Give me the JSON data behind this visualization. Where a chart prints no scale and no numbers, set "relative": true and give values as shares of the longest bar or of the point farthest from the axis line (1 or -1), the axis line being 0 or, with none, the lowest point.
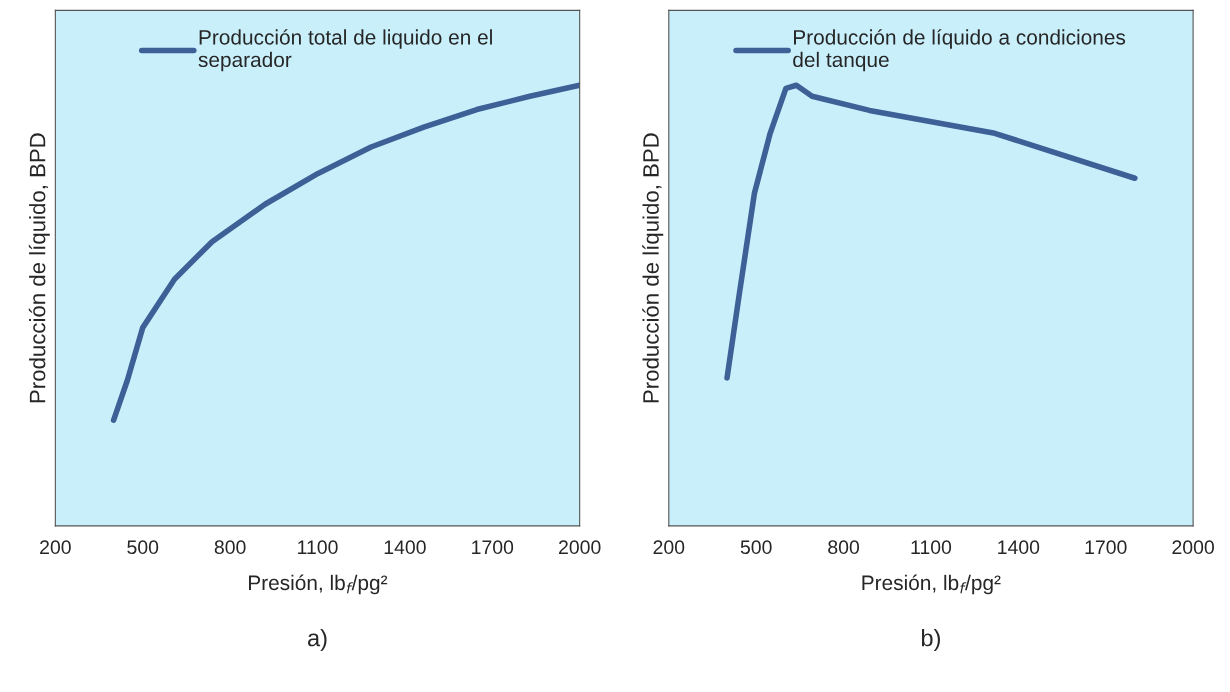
{
  "chart_data": [
    {
      "type": "line",
      "relative": true,
      "xlabel": "Presión, lb$_{f}$/pg²",
      "ylabel": "Producción de líquido, BPD",
      "xlim": [
        200,
        2000
      ],
      "xticks": [
        200,
        500,
        800,
        1100,
        1400,
        1700,
        2000
      ],
      "legend": "top",
      "annotations": [
        "a)"
      ],
      "series": [
        {
          "name": "Producción total de liquido en el\nseparador",
          "color": "#3d6096",
          "x": [
            400,
            447,
            500,
            609,
            738,
            920,
            1102,
            1284,
            1465,
            1647,
            1829,
            2000
          ],
          "values": [
            0.24,
            0.33,
            0.45,
            0.56,
            0.645,
            0.73,
            0.8,
            0.86,
            0.905,
            0.945,
            0.975,
            1
          ]
        }
      ]
    },
    {
      "type": "line",
      "relative": true,
      "xlabel": "Presión, lb$_{f}$/pg²",
      "ylabel": "Producción de líquido, BPD",
      "xlim": [
        200,
        2000
      ],
      "xticks": [
        200,
        500,
        800,
        1100,
        1400,
        1700,
        2000
      ],
      "legend": "top",
      "annotations": [
        "b)"
      ],
      "series": [
        {
          "name": "Producción de líquido a condiciones\ndel tanque",
          "color": "#3d6096",
          "x": [
            400,
            440,
            494,
            548,
            602,
            638,
            692,
            889,
            1319,
            1800
          ],
          "values": [
            0.336,
            0.517,
            0.755,
            0.891,
            0.993,
            1,
            0.975,
            0.943,
            0.891,
            0.789
          ]
        }
      ]
    }
  ]
}
